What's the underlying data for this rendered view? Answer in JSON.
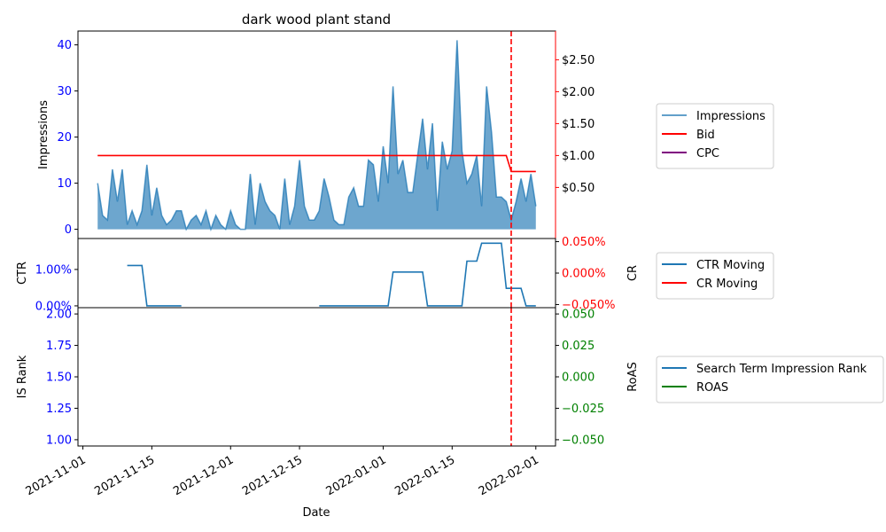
{
  "colors": {
    "impressions": "#1f77b4",
    "bid": "#ff0000",
    "cpc": "#800080",
    "ctr": "#1f77b4",
    "cr": "#ff0000",
    "rank": "#1f77b4",
    "roas": "#008000",
    "left_axis_ticks": "#0000ff",
    "cr_axis_ticks": "#ff0000",
    "roas_axis_ticks": "#008000",
    "vline": "#ff0000"
  },
  "chart_data": {
    "type": "line",
    "title": "dark wood plant stand",
    "xlabel": "Date",
    "x_range": [
      "2021-10-31",
      "2022-02-05"
    ],
    "x_ticks": [
      "2021-11-01",
      "2021-11-15",
      "2021-12-01",
      "2021-12-15",
      "2022-01-01",
      "2022-01-15",
      "2022-02-01"
    ],
    "vline_date": "2022-01-27",
    "panels": [
      {
        "id": "top",
        "left_axis": {
          "label": "Impressions",
          "range": [
            -2,
            43
          ],
          "ticks": [
            0,
            10,
            20,
            30,
            40
          ],
          "tick_labels": [
            "0",
            "10",
            "20",
            "30",
            "40"
          ]
        },
        "right_axis": {
          "label": "",
          "range": [
            -0.3,
            2.95
          ],
          "ticks": [
            0.5,
            1.0,
            1.5,
            2.0,
            2.5
          ],
          "tick_labels": [
            "$0.50",
            "$1.00",
            "$1.50",
            "$2.00",
            "$2.50"
          ]
        },
        "series": [
          {
            "name": "Impressions",
            "axis": "left",
            "style": "area",
            "start": "2021-11-04",
            "values": [
              10,
              3,
              2,
              13,
              6,
              13,
              1,
              4,
              1,
              4,
              14,
              3,
              9,
              3,
              1,
              2,
              4,
              4,
              0,
              2,
              3,
              1,
              4,
              0,
              3,
              1,
              0,
              4,
              1,
              0,
              0,
              12,
              1,
              10,
              6,
              4,
              3,
              0,
              11,
              1,
              5,
              15,
              5,
              2,
              2,
              4,
              11,
              7,
              2,
              1,
              1,
              7,
              9,
              5,
              5,
              15,
              14,
              6,
              18,
              10,
              31,
              12,
              15,
              8,
              8,
              16,
              24,
              13,
              23,
              4,
              19,
              13,
              17,
              41,
              17,
              10,
              12,
              16,
              5,
              31,
              21,
              7,
              7,
              6,
              2,
              6,
              11,
              6,
              12,
              5
            ]
          },
          {
            "name": "Bid",
            "axis": "right",
            "style": "line",
            "points": [
              [
                "2021-11-04",
                1.0
              ],
              [
                "2022-01-26",
                1.0
              ],
              [
                "2022-01-27",
                0.75
              ],
              [
                "2022-02-01",
                0.75
              ]
            ]
          },
          {
            "name": "CPC",
            "axis": "right",
            "style": "line",
            "points": []
          }
        ],
        "legend": [
          "Impressions",
          "Bid",
          "CPC"
        ]
      },
      {
        "id": "middle",
        "left_axis": {
          "label": "CTR",
          "range": [
            -0.0005,
            0.0185
          ],
          "ticks": [
            0,
            0.01
          ],
          "tick_labels": [
            "0.00%",
            "1.00%"
          ]
        },
        "right_axis": {
          "label": "CR",
          "range": [
            -0.00055,
            0.00055
          ],
          "ticks": [
            -0.0005,
            0,
            0.0005
          ],
          "tick_labels": [
            "−0.050%",
            "0.000%",
            "0.050%"
          ]
        },
        "series": [
          {
            "name": "CTR Moving",
            "axis": "left",
            "style": "line",
            "segments": [
              [
                [
                  "2021-11-10",
                  0.0111
                ],
                [
                  "2021-11-13",
                  0.0111
                ],
                [
                  "2021-11-14",
                  0.0
                ],
                [
                  "2021-11-21",
                  0.0
                ]
              ],
              [
                [
                  "2021-12-19",
                  0.0
                ],
                [
                  "2022-01-02",
                  0.0
                ],
                [
                  "2022-01-03",
                  0.0093
                ],
                [
                  "2022-01-09",
                  0.0093
                ],
                [
                  "2022-01-10",
                  0.0
                ],
                [
                  "2022-01-17",
                  0.0
                ],
                [
                  "2022-01-18",
                  0.0123
                ],
                [
                  "2022-01-20",
                  0.0123
                ],
                [
                  "2022-01-21",
                  0.0172
                ],
                [
                  "2022-01-24",
                  0.0172
                ],
                [
                  "2022-01-25",
                  0.0172
                ],
                [
                  "2022-01-26",
                  0.0048
                ],
                [
                  "2022-01-29",
                  0.0048
                ],
                [
                  "2022-01-30",
                  0.0
                ],
                [
                  "2022-02-01",
                  0.0
                ]
              ]
            ]
          },
          {
            "name": "CR Moving",
            "axis": "right",
            "style": "line",
            "points": []
          }
        ],
        "legend": [
          "CTR Moving",
          "CR Moving"
        ]
      },
      {
        "id": "bottom",
        "left_axis": {
          "label": "IS Rank",
          "range": [
            0.95,
            2.05
          ],
          "ticks": [
            1.0,
            1.25,
            1.5,
            1.75,
            2.0
          ],
          "tick_labels": [
            "1.00",
            "1.25",
            "1.50",
            "1.75",
            "2.00"
          ]
        },
        "right_axis": {
          "label": "RoAS",
          "range": [
            -0.055,
            0.055
          ],
          "ticks": [
            -0.05,
            -0.025,
            0,
            0.025,
            0.05
          ],
          "tick_labels": [
            "−0.050",
            "−0.025",
            "0.000",
            "0.025",
            "0.050"
          ]
        },
        "series": [
          {
            "name": "Search Term Impression Rank",
            "axis": "left",
            "style": "line",
            "points": []
          },
          {
            "name": "ROAS",
            "axis": "right",
            "style": "line",
            "points": []
          }
        ],
        "legend": [
          "Search Term Impression Rank",
          "ROAS"
        ]
      }
    ]
  }
}
